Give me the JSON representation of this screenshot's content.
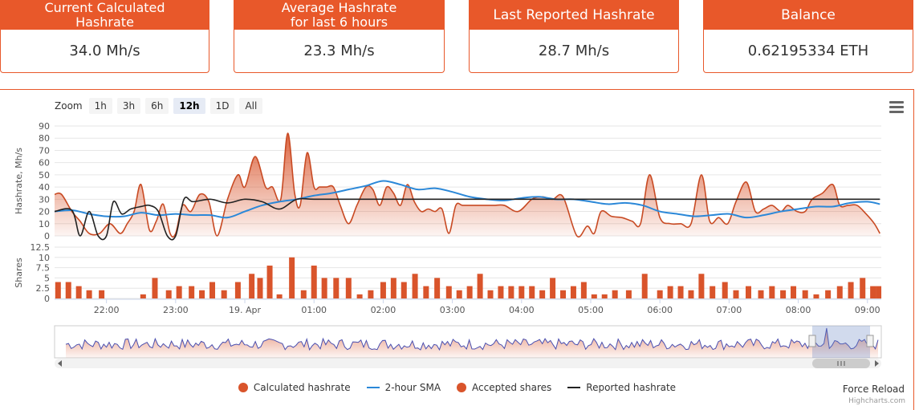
{
  "stats": [
    {
      "title": "Current Calculated\nHashrate",
      "value": "34.0 Mh/s"
    },
    {
      "title": "Average Hashrate\nfor last 6 hours",
      "value": "23.3 Mh/s"
    },
    {
      "title": "Last Reported Hashrate",
      "value": "28.7 Mh/s"
    },
    {
      "title": "Balance",
      "value": "0.62195334 ETH"
    }
  ],
  "zoom": {
    "label": "Zoom",
    "buttons": [
      "1h",
      "3h",
      "6h",
      "12h",
      "1D",
      "All"
    ],
    "active": "12h"
  },
  "legend": [
    {
      "name": "Calculated hashrate",
      "color": "#d9542b",
      "kind": "dot"
    },
    {
      "name": "2-hour SMA",
      "color": "#2b88d8",
      "kind": "line"
    },
    {
      "name": "Accepted shares",
      "color": "#d9542b",
      "kind": "dot"
    },
    {
      "name": "Reported hashrate",
      "color": "#222222",
      "kind": "line"
    }
  ],
  "force_reload": "Force Reload",
  "credits": "Highcharts.com",
  "colors": {
    "accent": "#e8582a",
    "series": "#d9542b",
    "sma": "#2b88d8",
    "reported": "#222222"
  },
  "chart_data": [
    {
      "type": "area",
      "ylabel": "Hashrate, Mh/s",
      "ylim": [
        0,
        90
      ],
      "yticks": [
        0,
        10,
        20,
        30,
        40,
        50,
        60,
        70,
        80,
        90
      ],
      "x_range_hours": [
        21.25,
        9.2
      ],
      "xticks": [
        {
          "h": 22,
          "label": "22:00"
        },
        {
          "h": 23,
          "label": "23:00"
        },
        {
          "h": 24,
          "label": "19. Apr"
        },
        {
          "h": 25,
          "label": "01:00"
        },
        {
          "h": 26,
          "label": "02:00"
        },
        {
          "h": 27,
          "label": "03:00"
        },
        {
          "h": 28,
          "label": "04:00"
        },
        {
          "h": 29,
          "label": "05:00"
        },
        {
          "h": 30,
          "label": "06:00"
        },
        {
          "h": 31,
          "label": "07:00"
        },
        {
          "h": 32,
          "label": "08:00"
        },
        {
          "h": 33,
          "label": "09:00"
        }
      ],
      "series": [
        {
          "name": "Calculated hashrate",
          "x": [
            21.25,
            21.35,
            21.5,
            21.62,
            21.75,
            21.9,
            22.05,
            22.2,
            22.3,
            22.4,
            22.5,
            22.62,
            22.72,
            22.82,
            22.92,
            23.0,
            23.1,
            23.22,
            23.35,
            23.48,
            23.6,
            23.75,
            23.9,
            24.0,
            24.15,
            24.3,
            24.4,
            24.52,
            24.62,
            24.72,
            24.8,
            24.9,
            25.0,
            25.08,
            25.18,
            25.28,
            25.38,
            25.5,
            25.62,
            25.75,
            25.85,
            25.95,
            26.05,
            26.15,
            26.25,
            26.35,
            26.45,
            26.55,
            26.65,
            26.75,
            26.85,
            26.95,
            27.05,
            27.15,
            27.3,
            27.45,
            27.6,
            27.75,
            27.95,
            28.15,
            28.3,
            28.45,
            28.6,
            28.8,
            28.95,
            29.05,
            29.15,
            29.3,
            29.45,
            29.6,
            29.72,
            29.85,
            30.0,
            30.15,
            30.3,
            30.45,
            30.6,
            30.72,
            30.85,
            30.98,
            31.1,
            31.25,
            31.38,
            31.5,
            31.62,
            31.75,
            31.85,
            31.98,
            32.1,
            32.2,
            32.35,
            32.5,
            32.6,
            32.72,
            32.85,
            32.98,
            33.1,
            33.18
          ],
          "values": [
            34,
            34,
            20,
            12,
            2,
            2,
            10,
            2,
            10,
            20,
            42,
            5,
            12,
            26,
            2,
            2,
            25,
            20,
            34,
            28,
            0,
            30,
            50,
            40,
            65,
            40,
            40,
            30,
            84,
            35,
            25,
            68,
            40,
            40,
            40,
            40,
            25,
            10,
            25,
            40,
            38,
            25,
            40,
            35,
            25,
            42,
            28,
            20,
            22,
            20,
            22,
            2,
            25,
            25,
            25,
            25,
            25,
            25,
            20,
            30,
            32,
            30,
            32,
            0,
            8,
            2,
            20,
            16,
            15,
            12,
            10,
            50,
            15,
            10,
            10,
            10,
            50,
            12,
            15,
            10,
            28,
            44,
            20,
            22,
            25,
            20,
            25,
            20,
            20,
            30,
            35,
            42,
            25,
            25,
            25,
            18,
            10,
            2
          ]
        },
        {
          "name": "2-hour SMA",
          "x": [
            21.25,
            21.5,
            21.75,
            22.0,
            22.25,
            22.5,
            22.75,
            23.0,
            23.25,
            23.5,
            23.75,
            24.0,
            24.25,
            24.5,
            24.75,
            25.0,
            25.25,
            25.5,
            25.75,
            26.0,
            26.25,
            26.5,
            26.75,
            27.0,
            27.25,
            27.5,
            27.75,
            28.0,
            28.25,
            28.5,
            28.75,
            29.0,
            29.25,
            29.5,
            29.75,
            30.0,
            30.25,
            30.5,
            30.75,
            31.0,
            31.25,
            31.5,
            31.75,
            32.0,
            32.25,
            32.5,
            32.75,
            33.0,
            33.18
          ],
          "values": [
            20,
            21,
            18,
            16,
            16,
            19,
            17,
            18,
            17,
            17,
            15,
            20,
            25,
            28,
            30,
            33,
            35,
            38,
            41,
            45,
            42,
            38,
            39,
            36,
            32,
            30,
            29,
            31,
            32,
            30,
            30,
            28,
            26,
            27,
            25,
            20,
            18,
            16,
            17,
            18,
            15,
            17,
            20,
            22,
            24,
            24,
            27,
            28,
            26
          ]
        },
        {
          "name": "Reported hashrate",
          "x": [
            21.25,
            21.5,
            21.62,
            21.75,
            21.88,
            22.0,
            22.1,
            22.22,
            22.35,
            22.5,
            22.62,
            22.75,
            22.88,
            23.0,
            23.12,
            23.25,
            23.5,
            23.75,
            24.0,
            24.25,
            24.5,
            24.75,
            25.0,
            25.5,
            26.0,
            27.0,
            28.0,
            29.0,
            30.0,
            31.0,
            32.0,
            33.0,
            33.18
          ],
          "values": [
            20,
            21,
            0,
            20,
            0,
            0,
            28,
            18,
            22,
            24,
            25,
            20,
            0,
            0,
            30,
            28,
            30,
            27,
            30,
            28,
            22,
            30,
            30,
            30,
            30,
            30,
            30,
            30,
            30,
            30,
            30,
            30,
            30
          ]
        }
      ]
    },
    {
      "type": "bar",
      "ylabel": "Shares",
      "ylim": [
        0,
        12.5
      ],
      "yticks": [
        0,
        2.5,
        5,
        7.5,
        10,
        12.5
      ],
      "series": [
        {
          "name": "Accepted shares",
          "x": [
            21.3,
            21.45,
            21.6,
            21.75,
            21.93,
            22.53,
            22.7,
            22.9,
            23.05,
            23.23,
            23.38,
            23.53,
            23.7,
            23.9,
            24.1,
            24.22,
            24.36,
            24.5,
            24.68,
            24.85,
            25.0,
            25.15,
            25.32,
            25.5,
            25.66,
            25.82,
            26.0,
            26.15,
            26.3,
            26.46,
            26.62,
            26.78,
            26.95,
            27.1,
            27.25,
            27.4,
            27.55,
            27.7,
            27.85,
            28.0,
            28.15,
            28.3,
            28.45,
            28.6,
            28.75,
            28.9,
            29.05,
            29.2,
            29.35,
            29.55,
            29.78,
            30.0,
            30.15,
            30.3,
            30.45,
            30.6,
            30.76,
            30.94,
            31.1,
            31.28,
            31.46,
            31.62,
            31.78,
            31.93,
            32.1,
            32.26,
            32.43,
            32.6,
            32.76,
            32.93,
            33.08,
            33.16
          ],
          "values": [
            4,
            4,
            3,
            2,
            2,
            1,
            5,
            2,
            3,
            3,
            2,
            4,
            2,
            4,
            6,
            5,
            8,
            1,
            10,
            2,
            8,
            5,
            5,
            5,
            1,
            2,
            4,
            5,
            4,
            6,
            3,
            5,
            3,
            2,
            3,
            6,
            2,
            3,
            3,
            3,
            3,
            2,
            5,
            2,
            3,
            4,
            1,
            1,
            2,
            2,
            6,
            2,
            3,
            3,
            2,
            6,
            3,
            4,
            2,
            3,
            2,
            3,
            2,
            3,
            2,
            1,
            2,
            3,
            4,
            5,
            3,
            3
          ]
        }
      ]
    }
  ]
}
